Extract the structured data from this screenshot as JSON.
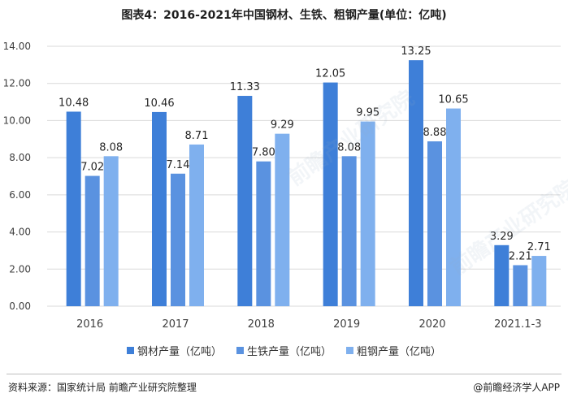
{
  "title": "图表4：2016-2021年中国钢材、生铁、粗钢产量(单位：亿吨)",
  "footer": {
    "source": "资料来源：国家统计局 前瞻产业研究院整理",
    "brand": "@前瞻经济学人APP"
  },
  "watermark": "前瞻产业研究院",
  "colors": {
    "steel": "#3e7fd8",
    "pig_iron": "#5a92e0",
    "crude_steel": "#7fb0ee",
    "grid": "#d9d9d9",
    "axis_text": "#404040"
  },
  "chart_data": {
    "type": "bar",
    "title": "图表4：2016-2021年中国钢材、生铁、粗钢产量(单位：亿吨)",
    "categories": [
      "2016",
      "2017",
      "2018",
      "2019",
      "2020",
      "2021.1-3"
    ],
    "series": [
      {
        "name": "钢材产量（亿吨）",
        "values": [
          10.48,
          10.46,
          11.33,
          12.05,
          13.25,
          3.29
        ]
      },
      {
        "name": "生铁产量（亿吨）",
        "values": [
          7.02,
          7.14,
          7.8,
          8.08,
          8.88,
          2.21
        ]
      },
      {
        "name": "粗钢产量（亿吨）",
        "values": [
          8.08,
          8.71,
          9.29,
          9.95,
          10.65,
          2.71
        ]
      }
    ],
    "ylim": [
      0,
      14
    ],
    "yticks": [
      "0.00",
      "2.00",
      "4.00",
      "6.00",
      "8.00",
      "10.00",
      "12.00",
      "14.00"
    ],
    "grid": true,
    "legend": "bottom-center",
    "xlabel": "",
    "ylabel": ""
  }
}
